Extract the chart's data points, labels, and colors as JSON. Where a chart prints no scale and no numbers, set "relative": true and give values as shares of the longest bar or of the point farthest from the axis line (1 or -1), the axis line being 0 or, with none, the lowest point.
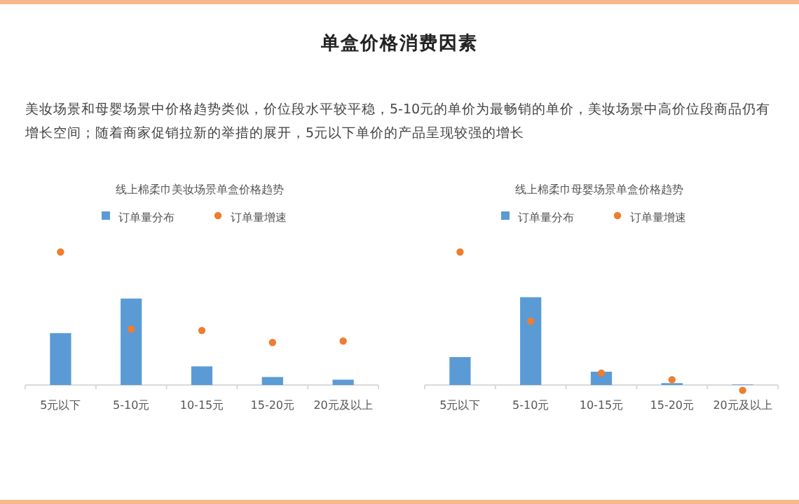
{
  "chart_data": [
    {
      "type": "other",
      "title": "单盒价格消费因素",
      "annotations": [
        "美妆场景和母婴场景中价格趋势类似，价位段水平较平稳，5-10元的单价为最畅销的单价，美妆场景中高价位段商品仍有增长空间；随着商家促销拉新的举措的展开，5元以下单价的产品呈现较强的增长"
      ]
    },
    {
      "type": "bar",
      "title": "线上棉柔巾美妆场景单盒价格趋势",
      "relative": true,
      "legend": "top",
      "categories": [
        "5元以下",
        "5-10元",
        "10-15元",
        "15-20元",
        "20元及以上"
      ],
      "series": [
        {
          "name": "订单量分布",
          "type": "bar",
          "color": "#5b9bd5",
          "values": [
            0.39,
            0.65,
            0.14,
            0.06,
            0.04
          ]
        },
        {
          "name": "订单量增速",
          "type": "scatter",
          "color": "#ed7d31",
          "values": [
            1,
            0.42,
            0.41,
            0.32,
            0.33
          ]
        }
      ]
    },
    {
      "type": "bar",
      "title": "线上棉柔巾母婴场景单盒价格趋势",
      "relative": true,
      "legend": "top",
      "categories": [
        "5元以下",
        "5-10元",
        "10-15元",
        "15-20元",
        "20元及以上"
      ],
      "series": [
        {
          "name": "订单量分布",
          "type": "bar",
          "color": "#5b9bd5",
          "values": [
            0.21,
            0.66,
            0.1,
            0.014,
            0.004
          ]
        },
        {
          "name": "订单量增速",
          "type": "scatter",
          "color": "#ed7d31",
          "values": [
            1,
            0.48,
            0.09,
            0.04,
            -0.04
          ]
        }
      ]
    }
  ]
}
